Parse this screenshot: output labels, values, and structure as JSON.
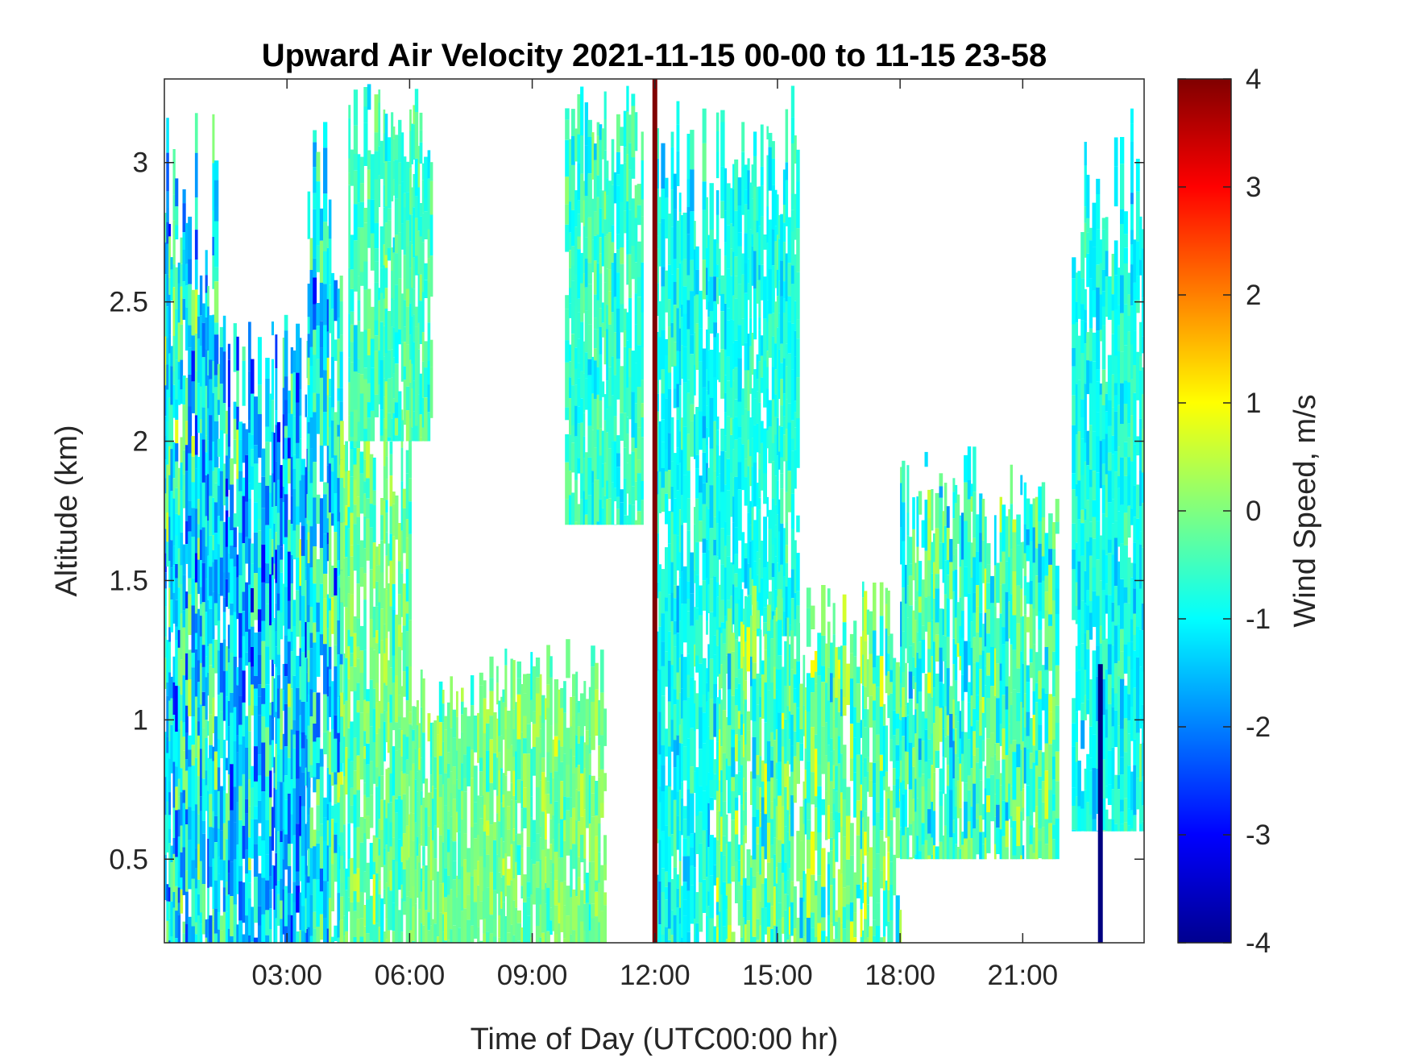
{
  "chart_data": {
    "type": "heatmap",
    "title": "Upward Air Velocity 2021-11-15 00-00 to 11-15 23-58",
    "xlabel": "Time of Day (UTC00:00 hr)",
    "ylabel": "Altitude (km)",
    "colorbar_label": "Wind Speed, m/s",
    "x_range_hours": [
      0,
      23.97
    ],
    "ylim": [
      0.2,
      3.3
    ],
    "x_ticks": [
      {
        "hour": 3,
        "label": "03:00"
      },
      {
        "hour": 6,
        "label": "06:00"
      },
      {
        "hour": 9,
        "label": "09:00"
      },
      {
        "hour": 12,
        "label": "12:00"
      },
      {
        "hour": 15,
        "label": "15:00"
      },
      {
        "hour": 18,
        "label": "18:00"
      },
      {
        "hour": 21,
        "label": "21:00"
      }
    ],
    "y_ticks": [
      {
        "value": 0.5,
        "label": "0.5"
      },
      {
        "value": 1,
        "label": "1"
      },
      {
        "value": 1.5,
        "label": "1.5"
      },
      {
        "value": 2,
        "label": "2"
      },
      {
        "value": 2.5,
        "label": "2.5"
      },
      {
        "value": 3,
        "label": "3"
      }
    ],
    "color_range": [
      -4,
      4
    ],
    "colormap": "jet",
    "colorbar_ticks": [
      {
        "value": 4,
        "label": "4"
      },
      {
        "value": 3,
        "label": "3"
      },
      {
        "value": 2,
        "label": "2"
      },
      {
        "value": 1,
        "label": "1"
      },
      {
        "value": 0,
        "label": "0"
      },
      {
        "value": -1,
        "label": "-1"
      },
      {
        "value": -2,
        "label": "-2"
      },
      {
        "value": -3,
        "label": "-3"
      },
      {
        "value": -4,
        "label": "-4"
      }
    ],
    "grid": false,
    "data_regions": [
      {
        "x": [
          0.0,
          1.3
        ],
        "y": [
          0.2,
          3.2
        ],
        "mean": -1.0,
        "spread": 1.4
      },
      {
        "x": [
          1.3,
          3.5
        ],
        "y": [
          0.2,
          2.5
        ],
        "mean": -1.4,
        "spread": 1.4
      },
      {
        "x": [
          3.5,
          4.3
        ],
        "y": [
          0.2,
          3.3
        ],
        "mean": -1.0,
        "spread": 1.3
      },
      {
        "x": [
          4.3,
          6.0
        ],
        "y": [
          0.2,
          2.2
        ],
        "mean": -0.2,
        "spread": 0.7
      },
      {
        "x": [
          4.5,
          6.5
        ],
        "y": [
          2.0,
          3.3
        ],
        "mean": -0.5,
        "spread": 0.6
      },
      {
        "x": [
          6.0,
          7.8
        ],
        "y": [
          0.2,
          1.2
        ],
        "mean": -0.2,
        "spread": 0.6
      },
      {
        "x": [
          7.8,
          10.8
        ],
        "y": [
          0.2,
          1.3
        ],
        "mean": -0.1,
        "spread": 0.6
      },
      {
        "x": [
          9.8,
          11.7
        ],
        "y": [
          1.7,
          3.3
        ],
        "mean": -0.6,
        "spread": 0.6
      },
      {
        "x": [
          12.0,
          13.5
        ],
        "y": [
          0.2,
          3.3
        ],
        "mean": -0.9,
        "spread": 0.6
      },
      {
        "x": [
          13.5,
          15.5
        ],
        "y": [
          1.3,
          3.3
        ],
        "mean": -0.8,
        "spread": 0.5
      },
      {
        "x": [
          13.5,
          18.0
        ],
        "y": [
          0.2,
          1.5
        ],
        "mean": -0.3,
        "spread": 1.0
      },
      {
        "x": [
          18.0,
          21.8
        ],
        "y": [
          0.5,
          2.0
        ],
        "mean": -0.5,
        "spread": 1.0
      },
      {
        "x": [
          22.2,
          24.0
        ],
        "y": [
          0.6,
          3.2
        ],
        "mean": -0.9,
        "spread": 0.6
      }
    ],
    "notable_features": [
      {
        "x": 12.0,
        "y": [
          0.2,
          3.3
        ],
        "value": 4,
        "description": "strong upward streak near 12:00"
      },
      {
        "x": 22.9,
        "y": [
          0.2,
          1.2
        ],
        "value": -4,
        "description": "strong downward streak near 22:50"
      }
    ]
  }
}
